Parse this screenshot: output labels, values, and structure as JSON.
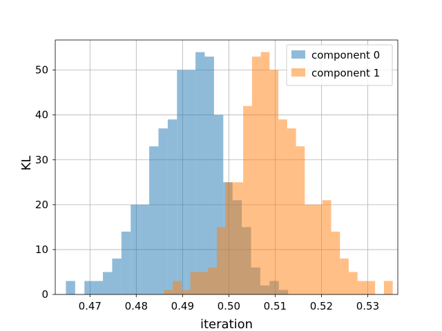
{
  "chart_data": {
    "type": "bar",
    "subtype": "histogram",
    "xlabel": "iteration",
    "ylabel": "KL",
    "xlim": [
      0.4625,
      0.5365
    ],
    "ylim": [
      0,
      56.7
    ],
    "xticks": [
      0.47,
      0.48,
      0.49,
      0.5,
      0.51,
      0.52,
      0.53
    ],
    "yticks": [
      0,
      10,
      20,
      30,
      40,
      50
    ],
    "grid": true,
    "legend_position": "top-right",
    "series": [
      {
        "name": "component 0",
        "color": "#1f77b4",
        "bins": [
          {
            "x0": 0.4648,
            "x1": 0.4668,
            "count": 3
          },
          {
            "x0": 0.4688,
            "x1": 0.4708,
            "count": 3
          },
          {
            "x0": 0.4708,
            "x1": 0.4728,
            "count": 3
          },
          {
            "x0": 0.4728,
            "x1": 0.4748,
            "count": 5
          },
          {
            "x0": 0.4748,
            "x1": 0.4768,
            "count": 8
          },
          {
            "x0": 0.4768,
            "x1": 0.4788,
            "count": 14
          },
          {
            "x0": 0.4788,
            "x1": 0.4808,
            "count": 20
          },
          {
            "x0": 0.4808,
            "x1": 0.4828,
            "count": 20
          },
          {
            "x0": 0.4828,
            "x1": 0.4848,
            "count": 33
          },
          {
            "x0": 0.4848,
            "x1": 0.4868,
            "count": 37
          },
          {
            "x0": 0.4868,
            "x1": 0.4888,
            "count": 39
          },
          {
            "x0": 0.4888,
            "x1": 0.4908,
            "count": 50
          },
          {
            "x0": 0.4908,
            "x1": 0.4928,
            "count": 50
          },
          {
            "x0": 0.4928,
            "x1": 0.4948,
            "count": 54
          },
          {
            "x0": 0.4948,
            "x1": 0.4968,
            "count": 53
          },
          {
            "x0": 0.4968,
            "x1": 0.4988,
            "count": 40
          },
          {
            "x0": 0.4988,
            "x1": 0.5008,
            "count": 25
          },
          {
            "x0": 0.5008,
            "x1": 0.5028,
            "count": 21
          },
          {
            "x0": 0.5028,
            "x1": 0.5048,
            "count": 15
          },
          {
            "x0": 0.5048,
            "x1": 0.5068,
            "count": 6
          },
          {
            "x0": 0.5068,
            "x1": 0.5088,
            "count": 2
          },
          {
            "x0": 0.5088,
            "x1": 0.5108,
            "count": 3
          },
          {
            "x0": 0.5108,
            "x1": 0.5128,
            "count": 1
          }
        ]
      },
      {
        "name": "component 1",
        "color": "#ff7f0e",
        "bins": [
          {
            "x0": 0.486,
            "x1": 0.4879,
            "count": 1
          },
          {
            "x0": 0.4879,
            "x1": 0.4898,
            "count": 3
          },
          {
            "x0": 0.4898,
            "x1": 0.4917,
            "count": 1
          },
          {
            "x0": 0.4917,
            "x1": 0.4936,
            "count": 5
          },
          {
            "x0": 0.4936,
            "x1": 0.4955,
            "count": 5
          },
          {
            "x0": 0.4955,
            "x1": 0.4974,
            "count": 6
          },
          {
            "x0": 0.4974,
            "x1": 0.4993,
            "count": 15
          },
          {
            "x0": 0.4993,
            "x1": 0.5012,
            "count": 25
          },
          {
            "x0": 0.5012,
            "x1": 0.5031,
            "count": 25
          },
          {
            "x0": 0.5031,
            "x1": 0.505,
            "count": 42
          },
          {
            "x0": 0.505,
            "x1": 0.5069,
            "count": 53
          },
          {
            "x0": 0.5069,
            "x1": 0.5088,
            "count": 54
          },
          {
            "x0": 0.5088,
            "x1": 0.5107,
            "count": 50
          },
          {
            "x0": 0.5107,
            "x1": 0.5126,
            "count": 39
          },
          {
            "x0": 0.5126,
            "x1": 0.5145,
            "count": 37
          },
          {
            "x0": 0.5145,
            "x1": 0.5164,
            "count": 33
          },
          {
            "x0": 0.5164,
            "x1": 0.5183,
            "count": 20
          },
          {
            "x0": 0.5183,
            "x1": 0.5202,
            "count": 20
          },
          {
            "x0": 0.5202,
            "x1": 0.5221,
            "count": 21
          },
          {
            "x0": 0.5221,
            "x1": 0.524,
            "count": 14
          },
          {
            "x0": 0.524,
            "x1": 0.5259,
            "count": 8
          },
          {
            "x0": 0.5259,
            "x1": 0.5278,
            "count": 5
          },
          {
            "x0": 0.5278,
            "x1": 0.5297,
            "count": 3
          },
          {
            "x0": 0.5297,
            "x1": 0.5316,
            "count": 3
          },
          {
            "x0": 0.5335,
            "x1": 0.5354,
            "count": 3
          }
        ]
      }
    ]
  }
}
